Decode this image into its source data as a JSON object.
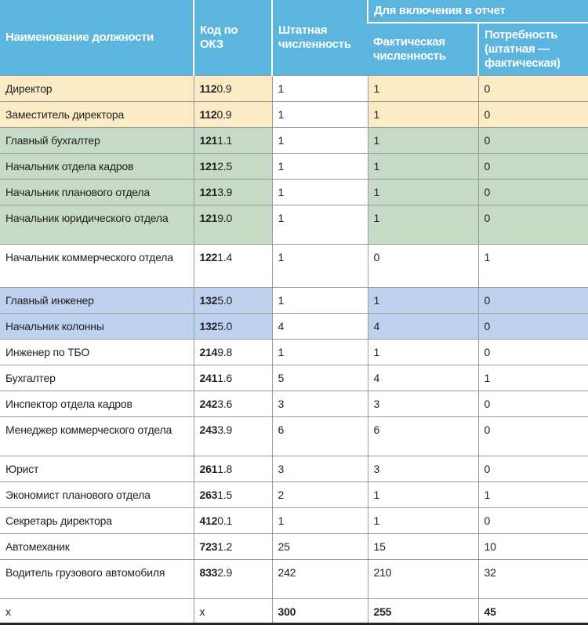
{
  "headers": {
    "name": "Наименование должности",
    "code": "Код по ОКЗ",
    "staff": "Штатная численность",
    "group": "Для включения в отчет",
    "actual": "Фактическая численность",
    "need": "Потребность (штатная — фактическая)"
  },
  "colors": {
    "header": "#5bb5dd",
    "yellow": "#fbecc6",
    "green": "#c6dac6",
    "blue": "#bed1ee"
  },
  "rows": [
    {
      "name": "Директор",
      "code_bold": "112",
      "code_rest": "0.9",
      "staff": "1",
      "actual": "1",
      "need": "0",
      "color": "yellow"
    },
    {
      "name": "Заместитель директора",
      "code_bold": "112",
      "code_rest": "0.9",
      "staff": "1",
      "actual": "1",
      "need": "0",
      "color": "yellow"
    },
    {
      "name": "Главный бухгалтер",
      "code_bold": "121",
      "code_rest": "1.1",
      "staff": "1",
      "actual": "1",
      "need": "0",
      "color": "green"
    },
    {
      "name": "Начальник отдела кадров",
      "code_bold": "121",
      "code_rest": "2.5",
      "staff": "1",
      "actual": "1",
      "need": "0",
      "color": "green"
    },
    {
      "name": "Начальник планового отдела",
      "code_bold": "121",
      "code_rest": "3.9",
      "staff": "1",
      "actual": "1",
      "need": "0",
      "color": "green"
    },
    {
      "name": "Начальник юридического отдела",
      "code_bold": "121",
      "code_rest": "9.0",
      "staff": "1",
      "actual": "1",
      "need": "0",
      "color": "green"
    },
    {
      "name": "Начальник коммерческого отдела",
      "code_bold": "122",
      "code_rest": "1.4",
      "staff": "1",
      "actual": "0",
      "need": "1",
      "color": ""
    },
    {
      "name": "Главный инженер",
      "code_bold": "132",
      "code_rest": "5.0",
      "staff": "1",
      "actual": "1",
      "need": "0",
      "color": "blue"
    },
    {
      "name": "Начальник колонны",
      "code_bold": "132",
      "code_rest": "5.0",
      "staff": "4",
      "actual": "4",
      "need": "0",
      "color": "blue"
    },
    {
      "name": "Инженер по ТБО",
      "code_bold": "214",
      "code_rest": "9.8",
      "staff": "1",
      "actual": "1",
      "need": "0",
      "color": ""
    },
    {
      "name": "Бухгалтер",
      "code_bold": "241",
      "code_rest": "1.6",
      "staff": "5",
      "actual": "4",
      "need": "1",
      "color": ""
    },
    {
      "name": "Инспектор отдела кадров",
      "code_bold": "242",
      "code_rest": "3.6",
      "staff": "3",
      "actual": "3",
      "need": "0",
      "color": ""
    },
    {
      "name": "Менеджер коммерческого отдела",
      "code_bold": "243",
      "code_rest": "3.9",
      "staff": "6",
      "actual": "6",
      "need": "0",
      "color": ""
    },
    {
      "name": "Юрист",
      "code_bold": "261",
      "code_rest": "1.8",
      "staff": "3",
      "actual": "3",
      "need": "0",
      "color": ""
    },
    {
      "name": "Экономист планового отдела",
      "code_bold": "263",
      "code_rest": "1.5",
      "staff": "2",
      "actual": "1",
      "need": "1",
      "color": ""
    },
    {
      "name": "Секретарь директора",
      "code_bold": "412",
      "code_rest": "0.1",
      "staff": "1",
      "actual": "1",
      "need": "0",
      "color": ""
    },
    {
      "name": "Автомеханик",
      "code_bold": "723",
      "code_rest": "1.2",
      "staff": "25",
      "actual": "15",
      "need": "10",
      "color": ""
    },
    {
      "name": "Водитель грузового автомобиля",
      "code_bold": "833",
      "code_rest": "2.9",
      "staff": "242",
      "actual": "210",
      "need": "32",
      "color": ""
    }
  ],
  "total": {
    "name": "х",
    "code": "х",
    "staff": "300",
    "actual": "255",
    "need": "45"
  }
}
